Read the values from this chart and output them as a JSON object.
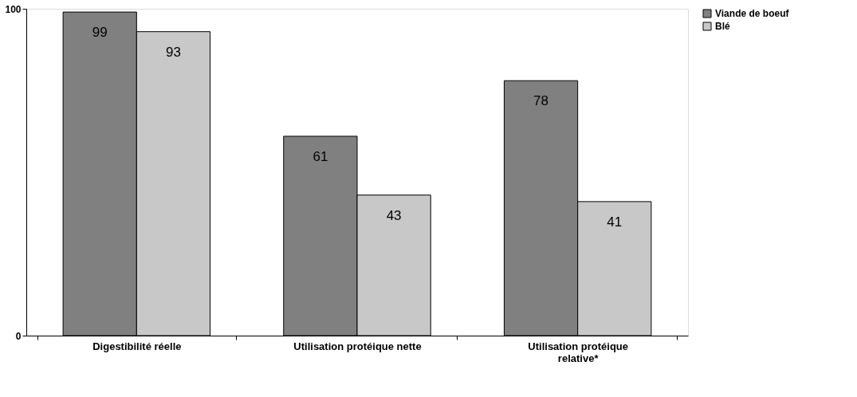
{
  "chart_data": {
    "type": "bar",
    "categories": [
      "Digestibilité réelle",
      "Utilisation protéique nette",
      "Utilisation protéique relative*"
    ],
    "series": [
      {
        "name": "Viande de boeuf",
        "color": "#808080",
        "values": [
          99,
          61,
          78
        ]
      },
      {
        "name": "Blé",
        "color": "#c8c8c8",
        "values": [
          93,
          43,
          41
        ]
      }
    ],
    "ylim": [
      0,
      100
    ],
    "yticks": [
      0,
      100
    ],
    "grid": false,
    "legend": "right",
    "data_labels": true
  }
}
